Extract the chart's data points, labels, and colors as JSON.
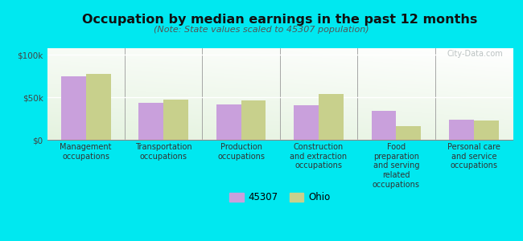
{
  "title": "Occupation by median earnings in the past 12 months",
  "subtitle": "(Note: State values scaled to 45307 population)",
  "categories": [
    "Management\noccupations",
    "Transportation\noccupations",
    "Production\noccupations",
    "Construction\nand extraction\noccupations",
    "Food\npreparation\nand serving\nrelated\noccupations",
    "Personal care\nand service\noccupations"
  ],
  "values_45307": [
    75000,
    44000,
    42000,
    41000,
    34000,
    24000
  ],
  "values_ohio": [
    78000,
    47000,
    46000,
    54000,
    16000,
    23000
  ],
  "color_45307": "#c9a0dc",
  "color_ohio": "#c8d08c",
  "background_fig": "#00e8f0",
  "yticks": [
    0,
    50000,
    100000
  ],
  "ytick_labels": [
    "$0",
    "$50k",
    "$100k"
  ],
  "ylim": [
    0,
    108000
  ],
  "legend_45307": "45307",
  "legend_ohio": "Ohio",
  "watermark": "City-Data.com",
  "bar_width": 0.32,
  "title_fontsize": 11.5,
  "subtitle_fontsize": 8,
  "tick_label_fontsize": 7,
  "axis_tick_fontsize": 7.5
}
